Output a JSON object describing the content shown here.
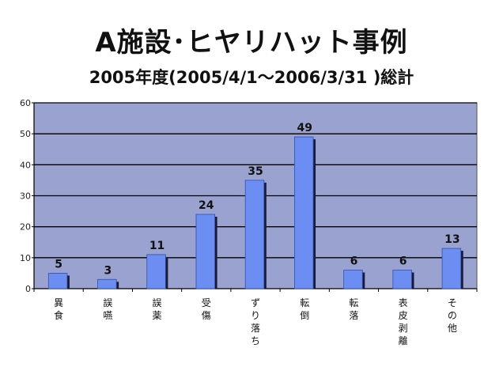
{
  "header": {
    "title": "A施設･ヒヤリハット事例",
    "subtitle": "2005年度(2005/4/1～2006/3/31 )総計"
  },
  "chart_data": {
    "type": "bar",
    "categories": [
      "異食",
      "誤嚥",
      "誤薬",
      "受傷",
      "ずり落ち",
      "転倒",
      "転落",
      "表皮剥離",
      "その他"
    ],
    "values": [
      5,
      3,
      11,
      24,
      35,
      49,
      6,
      6,
      13
    ],
    "ylim": [
      0,
      60
    ],
    "yticks": [
      0,
      10,
      20,
      30,
      40,
      50,
      60
    ],
    "grid": true,
    "legend": "none",
    "colors": {
      "plot_bg": "#9aa3cf",
      "bar": "#6c8df2",
      "bar_shadow": "#1a1a33",
      "gridline": "#000000"
    }
  }
}
